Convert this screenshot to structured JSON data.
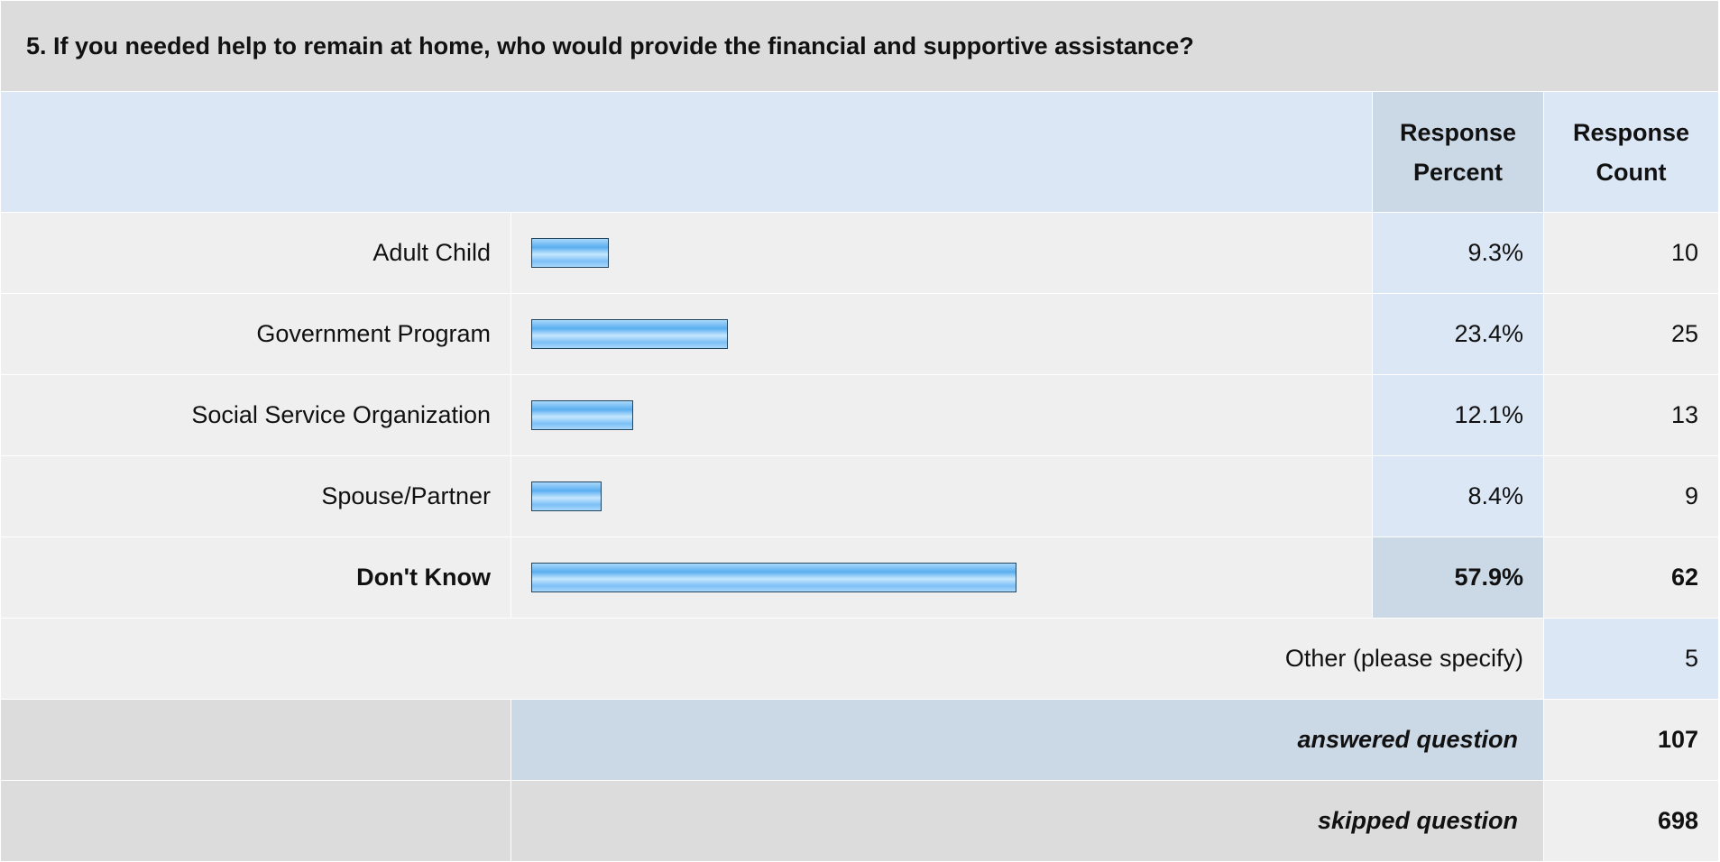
{
  "question": {
    "title": "5. If you needed help to remain at home, who would provide the financial and supportive assistance?"
  },
  "headers": {
    "percent": "Response Percent",
    "count": "Response Count"
  },
  "chart_data": {
    "type": "bar",
    "title": "5. If you needed help to remain at home, who would provide the financial and supportive assistance?",
    "categories": [
      "Adult Child",
      "Government Program",
      "Social Service Organization",
      "Spouse/Partner",
      "Don't Know"
    ],
    "percent_labels": [
      "9.3%",
      "23.4%",
      "12.1%",
      "8.4%",
      "57.9%"
    ],
    "values": [
      9.3,
      23.4,
      12.1,
      8.4,
      57.9
    ],
    "counts": [
      10,
      25,
      13,
      9,
      62
    ],
    "highlight_index": 4,
    "xlim": [
      0,
      100
    ],
    "bar_color": "#7cc0f6"
  },
  "other": {
    "label": "Other (please specify)",
    "count": "5"
  },
  "summary": {
    "answered_label": "answered question",
    "answered_value": "107",
    "skipped_label": "skipped question",
    "skipped_value": "698"
  }
}
